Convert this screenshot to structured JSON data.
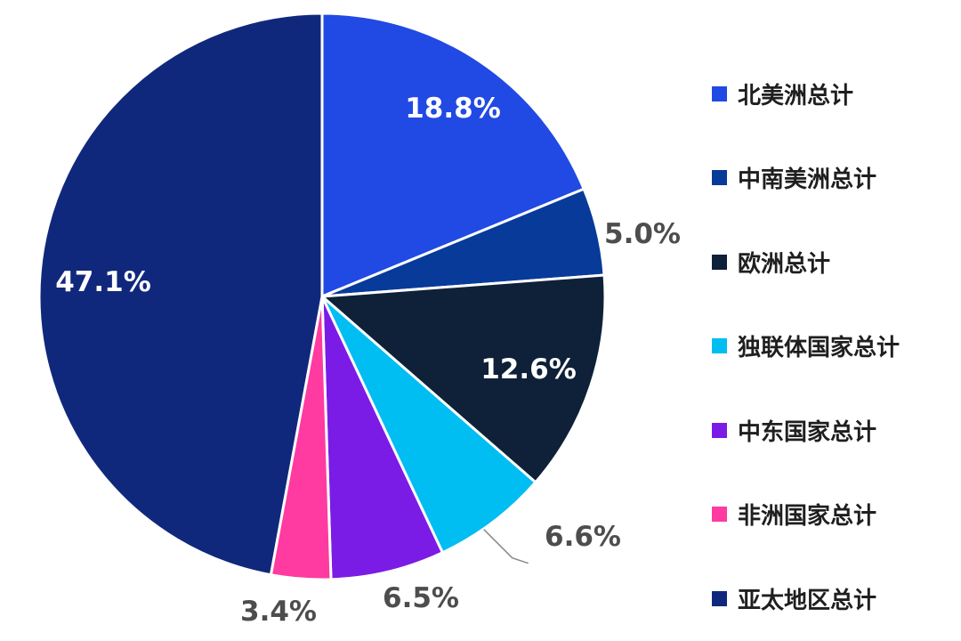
{
  "chart_data": {
    "type": "pie",
    "start_angle_deg": 0,
    "direction": "clockwise",
    "legend_position": "right",
    "slices": [
      {
        "label": "北美洲总计",
        "value": 18.8,
        "value_label": "18.8%",
        "color": "#2149e3",
        "label_inside": true
      },
      {
        "label": "中南美洲总计",
        "value": 5.0,
        "value_label": "5.0%",
        "color": "#083a9a",
        "label_inside": false
      },
      {
        "label": "欧洲总计",
        "value": 12.6,
        "value_label": "12.6%",
        "color": "#0e2138",
        "label_inside": true
      },
      {
        "label": "独联体国家总计",
        "value": 6.6,
        "value_label": "6.6%",
        "color": "#00bdf2",
        "label_inside": false,
        "leader_line": true
      },
      {
        "label": "中东国家总计",
        "value": 6.5,
        "value_label": "6.5%",
        "color": "#7b1ce6",
        "label_inside": false
      },
      {
        "label": "非洲国家总计",
        "value": 3.4,
        "value_label": "3.4%",
        "color": "#ff3aa0",
        "label_inside": false
      },
      {
        "label": "亚太地区总计",
        "value": 47.1,
        "value_label": "47.1%",
        "color": "#10287c",
        "label_inside": true
      }
    ]
  }
}
